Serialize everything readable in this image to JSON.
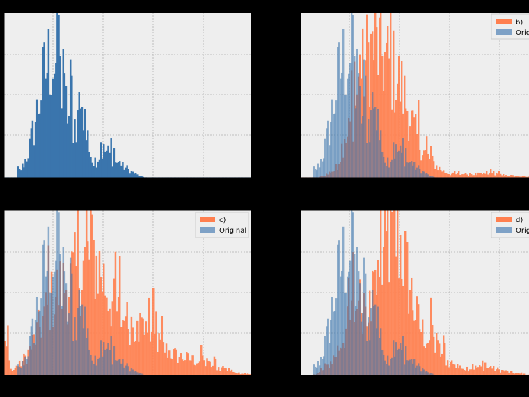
{
  "colors": {
    "figure_background": "#000000",
    "axes_background": "#eeeeee",
    "grid": "#b0b0b0",
    "original": "#3a75ad",
    "overlay_original": "#7ea1c6",
    "transformed": "#ff7f4f"
  },
  "chart_data": [
    {
      "type": "histogram",
      "panel": "top-left",
      "grid": true,
      "legend": null,
      "series": [
        {
          "role": "original",
          "profile": "original"
        }
      ]
    },
    {
      "type": "histogram",
      "panel": "top-right",
      "grid": true,
      "legend": {
        "placement": "top-right",
        "entries": [
          "b)",
          "Original"
        ]
      },
      "series": [
        {
          "name": "b)",
          "role": "transformed",
          "profile": "b"
        },
        {
          "name": "Original",
          "role": "original",
          "profile": "original"
        }
      ]
    },
    {
      "type": "histogram",
      "panel": "bottom-left",
      "grid": true,
      "legend": {
        "placement": "top-right",
        "entries": [
          "c)",
          "Original"
        ]
      },
      "series": [
        {
          "name": "c)",
          "role": "transformed",
          "profile": "c"
        },
        {
          "name": "Original",
          "role": "original",
          "profile": "original"
        }
      ]
    },
    {
      "type": "histogram",
      "panel": "bottom-right",
      "grid": true,
      "legend": {
        "placement": "top-right",
        "entries": [
          "d)",
          "Original"
        ]
      },
      "series": [
        {
          "name": "d)",
          "role": "transformed",
          "profile": "d"
        },
        {
          "name": "Original",
          "role": "original",
          "profile": "original"
        }
      ]
    }
  ]
}
